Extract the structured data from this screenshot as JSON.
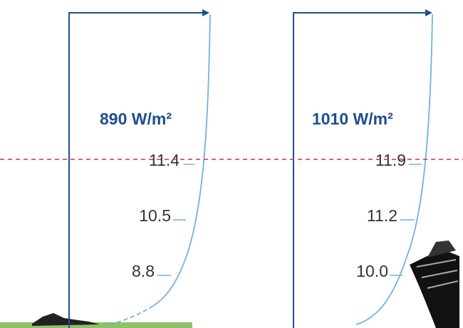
{
  "profiles": [
    {
      "power": "890 W/m²",
      "speeds": [
        "11.4",
        "10.5",
        "8.8"
      ]
    },
    {
      "power": "1010 W/m²",
      "speeds": [
        "11.9",
        "11.2",
        "10.0"
      ]
    }
  ]
}
